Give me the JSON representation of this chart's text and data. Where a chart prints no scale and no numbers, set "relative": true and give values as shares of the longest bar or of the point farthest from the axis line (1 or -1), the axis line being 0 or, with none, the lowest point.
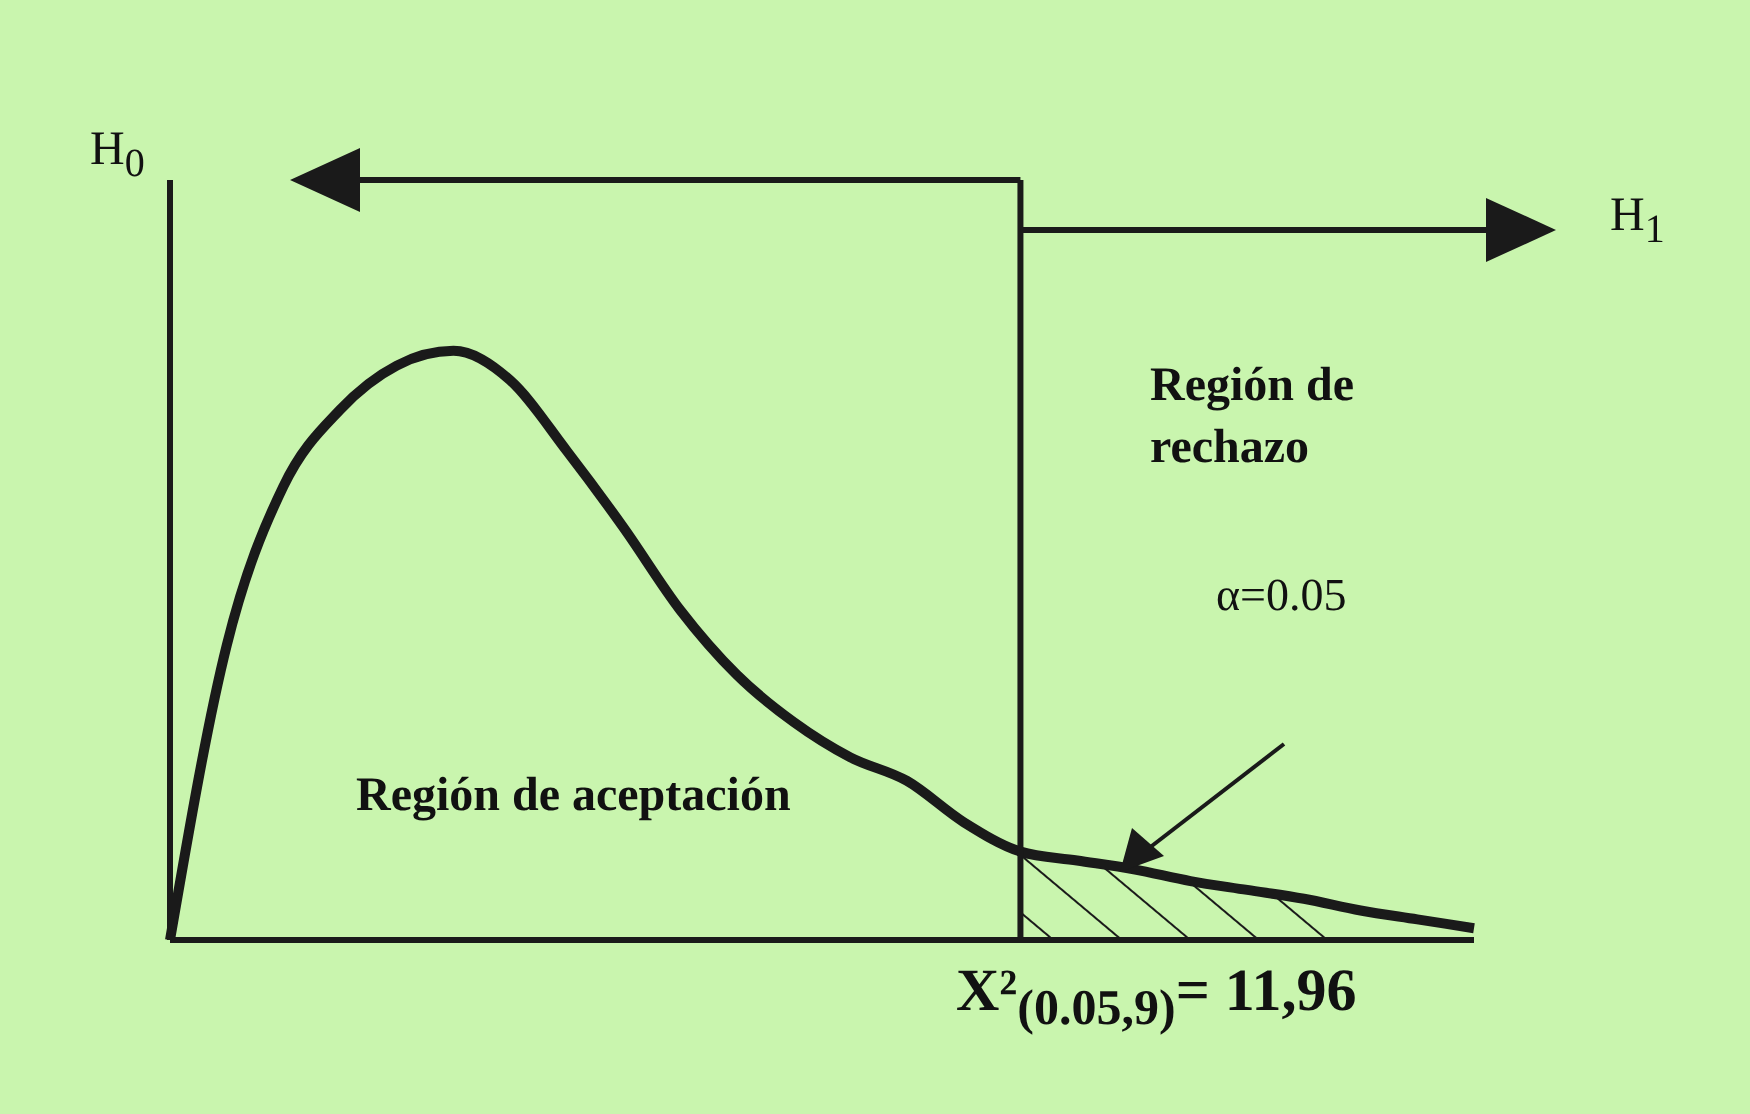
{
  "chart_data": {
    "type": "line",
    "relative": true,
    "categories": [
      null,
      null,
      null,
      null,
      null,
      null,
      null,
      null,
      null,
      null,
      null,
      null,
      null,
      null,
      null,
      null,
      null,
      null,
      null,
      null,
      null,
      null,
      null,
      null
    ],
    "series": [
      {
        "color": "#1a1a1a",
        "values": [
          0,
          0.5,
          0.77,
          0.9,
          0.975,
          1,
          0.95,
          0.83,
          0.7,
          0.56,
          0.45,
          0.37,
          0.31,
          0.27,
          0.2,
          0.15,
          0.135,
          0.12,
          0.1,
          0.085,
          0.07,
          0.05,
          0.035,
          0.02
        ]
      },
      {
        "type": "area",
        "color": "#1a1a1a",
        "values": [
          null,
          null,
          null,
          null,
          null,
          null,
          null,
          null,
          null,
          null,
          null,
          null,
          null,
          null,
          null,
          0.15,
          0.135,
          0.12,
          0.1,
          0.085,
          0.07,
          0.05,
          null,
          null
        ]
      }
    ],
    "annotations": [
      "H$_{0}$",
      "H$_{1}$",
      "Región de rechazo",
      "α=0.05",
      "Región de aceptación",
      "X²$_{(0.05,9)}$= 11,96"
    ]
  }
}
